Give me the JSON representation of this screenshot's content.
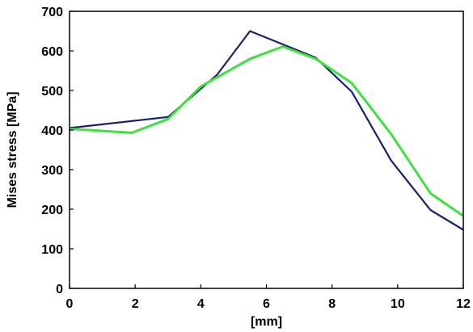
{
  "chart_data": {
    "type": "line",
    "xlabel": "[mm]",
    "ylabel": "Mises stress [MPa]",
    "xlim": [
      0,
      12
    ],
    "ylim": [
      0,
      700
    ],
    "xticks": [
      0,
      2,
      4,
      6,
      8,
      10,
      12
    ],
    "yticks": [
      0,
      100,
      200,
      300,
      400,
      500,
      600,
      700
    ],
    "grid": false,
    "legend": "none",
    "series": [
      {
        "color": "#1a1f6e",
        "x": [
          0,
          3,
          4.5,
          5.5,
          7.5,
          8.6,
          9.8,
          11,
          12
        ],
        "y": [
          405,
          433,
          540,
          650,
          583,
          497,
          323,
          198,
          148
        ]
      },
      {
        "color": "#3ee23e",
        "x": [
          0,
          1.9,
          3,
          4,
          5.5,
          6.5,
          7.5,
          8.6,
          9.8,
          11,
          12
        ],
        "y": [
          403,
          393,
          428,
          510,
          580,
          611,
          580,
          519,
          390,
          240,
          183
        ]
      }
    ]
  }
}
